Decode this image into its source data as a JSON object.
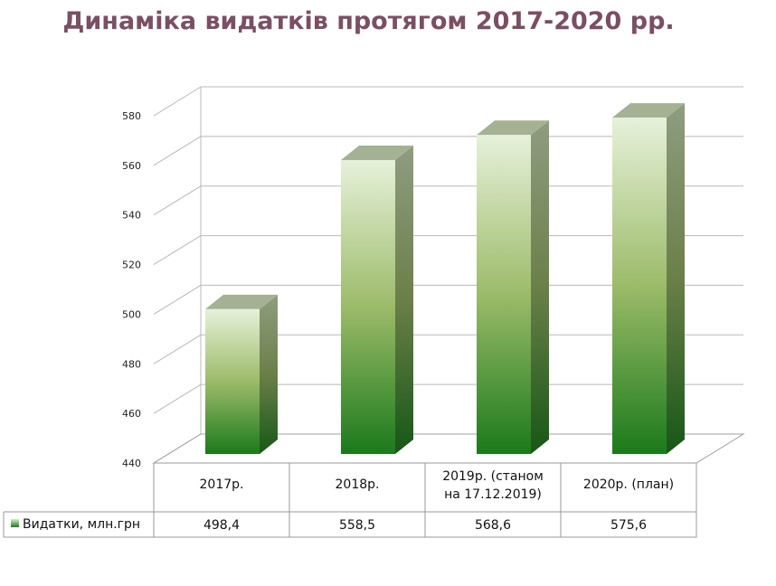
{
  "chart_data": {
    "type": "bar",
    "title": "Динаміка видатків протягом 2017-2020 рр.",
    "categories": [
      "2017р.",
      "2018р.",
      "2019р. (станом на 17.12.2019)",
      "2020р. (план)"
    ],
    "category_lines": [
      [
        "2017р."
      ],
      [
        "2018р."
      ],
      [
        "2019р. (станом",
        "на 17.12.2019)"
      ],
      [
        "2020р. (план)"
      ]
    ],
    "series": [
      {
        "name": "Видатки, млн.грн",
        "values": [
          498.4,
          558.5,
          568.6,
          575.6
        ],
        "labels": [
          "498,4",
          "558,5",
          "568,6",
          "575,6"
        ]
      }
    ],
    "yticks": [
      440,
      460,
      480,
      500,
      520,
      540,
      560,
      580
    ],
    "ylim": [
      440,
      580
    ],
    "grid": true,
    "legend": "bottom-left (data table)",
    "colors": {
      "bar_top": "#e4f0d8",
      "bar_mid": "#9ab867",
      "bar_bottom": "#1d7a1d",
      "title": "#7b4f63"
    }
  }
}
